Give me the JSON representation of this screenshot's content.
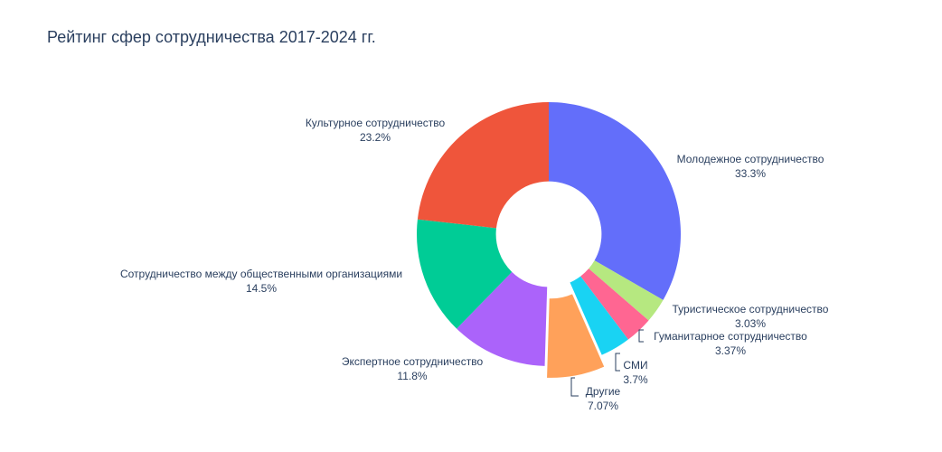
{
  "chart_data": {
    "type": "pie",
    "title": "Рейтинг сфер сотрудничества 2017-2024 гг.",
    "hole": 0.4,
    "slices": [
      {
        "name": "Молодежное сотрудничество",
        "percent_label": "33.3%",
        "value": 33.3,
        "color": "#636efa",
        "pulled": false
      },
      {
        "name": "Туристическое сотрудничество",
        "percent_label": "3.03%",
        "value": 3.03,
        "color": "#b6e880",
        "pulled": false
      },
      {
        "name": "Гуманитарное сотрудничество",
        "percent_label": "3.37%",
        "value": 3.37,
        "color": "#ff6692",
        "pulled": false
      },
      {
        "name": "СМИ",
        "percent_label": "3.7%",
        "value": 3.7,
        "color": "#19d3f3",
        "pulled": false
      },
      {
        "name": "Другие",
        "percent_label": "7.07%",
        "value": 7.07,
        "color": "#ffa15a",
        "pulled": true
      },
      {
        "name": "Экспертное сотрудничество",
        "percent_label": "11.8%",
        "value": 11.8,
        "color": "#ab63fa",
        "pulled": false
      },
      {
        "name": "Сотрудничество между общественными организациями",
        "percent_label": "14.5%",
        "value": 14.5,
        "color": "#00cc96",
        "pulled": false
      },
      {
        "name": "Культурное сотрудничество",
        "percent_label": "23.2%",
        "value": 23.2,
        "color": "#ef553b",
        "pulled": false
      }
    ]
  }
}
